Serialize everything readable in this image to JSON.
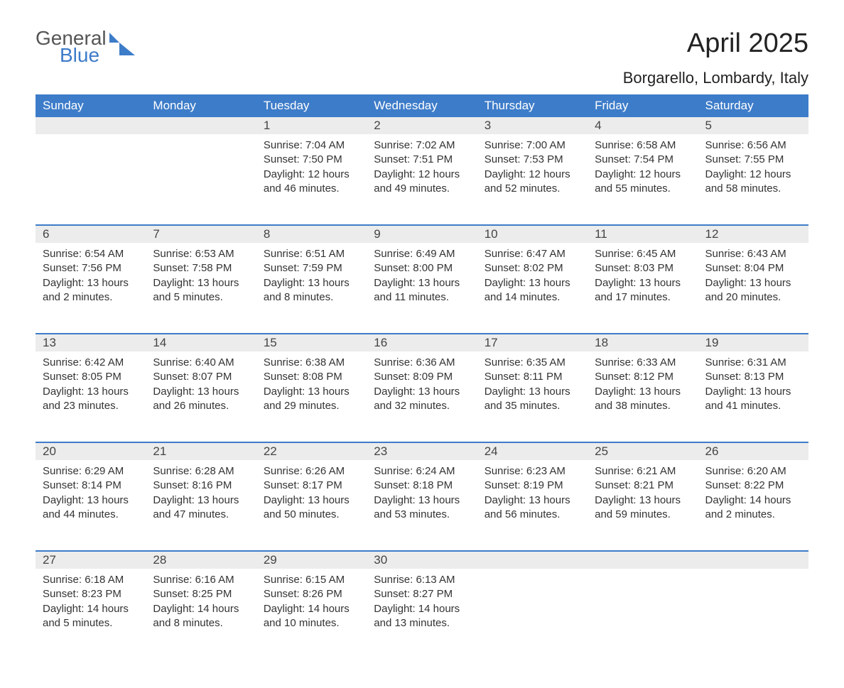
{
  "logo": {
    "word1": "General",
    "word2": "Blue"
  },
  "title": "April 2025",
  "location": "Borgarello, Lombardy, Italy",
  "colors": {
    "header_bg": "#3d7cc9",
    "header_text": "#ffffff",
    "daynum_bg": "#ececec",
    "week_divider": "#3d7cc9",
    "body_text": "#333333",
    "page_bg": "#ffffff"
  },
  "typography": {
    "title_fontsize": 38,
    "location_fontsize": 22,
    "header_fontsize": 17,
    "cell_fontsize": 15
  },
  "layout": {
    "columns": 7,
    "rows": 5
  },
  "weekdays": [
    "Sunday",
    "Monday",
    "Tuesday",
    "Wednesday",
    "Thursday",
    "Friday",
    "Saturday"
  ],
  "weeks": [
    [
      {
        "day": "",
        "sunrise": "",
        "sunset": "",
        "daylight": ""
      },
      {
        "day": "",
        "sunrise": "",
        "sunset": "",
        "daylight": ""
      },
      {
        "day": "1",
        "sunrise": "Sunrise: 7:04 AM",
        "sunset": "Sunset: 7:50 PM",
        "daylight": "Daylight: 12 hours and 46 minutes."
      },
      {
        "day": "2",
        "sunrise": "Sunrise: 7:02 AM",
        "sunset": "Sunset: 7:51 PM",
        "daylight": "Daylight: 12 hours and 49 minutes."
      },
      {
        "day": "3",
        "sunrise": "Sunrise: 7:00 AM",
        "sunset": "Sunset: 7:53 PM",
        "daylight": "Daylight: 12 hours and 52 minutes."
      },
      {
        "day": "4",
        "sunrise": "Sunrise: 6:58 AM",
        "sunset": "Sunset: 7:54 PM",
        "daylight": "Daylight: 12 hours and 55 minutes."
      },
      {
        "day": "5",
        "sunrise": "Sunrise: 6:56 AM",
        "sunset": "Sunset: 7:55 PM",
        "daylight": "Daylight: 12 hours and 58 minutes."
      }
    ],
    [
      {
        "day": "6",
        "sunrise": "Sunrise: 6:54 AM",
        "sunset": "Sunset: 7:56 PM",
        "daylight": "Daylight: 13 hours and 2 minutes."
      },
      {
        "day": "7",
        "sunrise": "Sunrise: 6:53 AM",
        "sunset": "Sunset: 7:58 PM",
        "daylight": "Daylight: 13 hours and 5 minutes."
      },
      {
        "day": "8",
        "sunrise": "Sunrise: 6:51 AM",
        "sunset": "Sunset: 7:59 PM",
        "daylight": "Daylight: 13 hours and 8 minutes."
      },
      {
        "day": "9",
        "sunrise": "Sunrise: 6:49 AM",
        "sunset": "Sunset: 8:00 PM",
        "daylight": "Daylight: 13 hours and 11 minutes."
      },
      {
        "day": "10",
        "sunrise": "Sunrise: 6:47 AM",
        "sunset": "Sunset: 8:02 PM",
        "daylight": "Daylight: 13 hours and 14 minutes."
      },
      {
        "day": "11",
        "sunrise": "Sunrise: 6:45 AM",
        "sunset": "Sunset: 8:03 PM",
        "daylight": "Daylight: 13 hours and 17 minutes."
      },
      {
        "day": "12",
        "sunrise": "Sunrise: 6:43 AM",
        "sunset": "Sunset: 8:04 PM",
        "daylight": "Daylight: 13 hours and 20 minutes."
      }
    ],
    [
      {
        "day": "13",
        "sunrise": "Sunrise: 6:42 AM",
        "sunset": "Sunset: 8:05 PM",
        "daylight": "Daylight: 13 hours and 23 minutes."
      },
      {
        "day": "14",
        "sunrise": "Sunrise: 6:40 AM",
        "sunset": "Sunset: 8:07 PM",
        "daylight": "Daylight: 13 hours and 26 minutes."
      },
      {
        "day": "15",
        "sunrise": "Sunrise: 6:38 AM",
        "sunset": "Sunset: 8:08 PM",
        "daylight": "Daylight: 13 hours and 29 minutes."
      },
      {
        "day": "16",
        "sunrise": "Sunrise: 6:36 AM",
        "sunset": "Sunset: 8:09 PM",
        "daylight": "Daylight: 13 hours and 32 minutes."
      },
      {
        "day": "17",
        "sunrise": "Sunrise: 6:35 AM",
        "sunset": "Sunset: 8:11 PM",
        "daylight": "Daylight: 13 hours and 35 minutes."
      },
      {
        "day": "18",
        "sunrise": "Sunrise: 6:33 AM",
        "sunset": "Sunset: 8:12 PM",
        "daylight": "Daylight: 13 hours and 38 minutes."
      },
      {
        "day": "19",
        "sunrise": "Sunrise: 6:31 AM",
        "sunset": "Sunset: 8:13 PM",
        "daylight": "Daylight: 13 hours and 41 minutes."
      }
    ],
    [
      {
        "day": "20",
        "sunrise": "Sunrise: 6:29 AM",
        "sunset": "Sunset: 8:14 PM",
        "daylight": "Daylight: 13 hours and 44 minutes."
      },
      {
        "day": "21",
        "sunrise": "Sunrise: 6:28 AM",
        "sunset": "Sunset: 8:16 PM",
        "daylight": "Daylight: 13 hours and 47 minutes."
      },
      {
        "day": "22",
        "sunrise": "Sunrise: 6:26 AM",
        "sunset": "Sunset: 8:17 PM",
        "daylight": "Daylight: 13 hours and 50 minutes."
      },
      {
        "day": "23",
        "sunrise": "Sunrise: 6:24 AM",
        "sunset": "Sunset: 8:18 PM",
        "daylight": "Daylight: 13 hours and 53 minutes."
      },
      {
        "day": "24",
        "sunrise": "Sunrise: 6:23 AM",
        "sunset": "Sunset: 8:19 PM",
        "daylight": "Daylight: 13 hours and 56 minutes."
      },
      {
        "day": "25",
        "sunrise": "Sunrise: 6:21 AM",
        "sunset": "Sunset: 8:21 PM",
        "daylight": "Daylight: 13 hours and 59 minutes."
      },
      {
        "day": "26",
        "sunrise": "Sunrise: 6:20 AM",
        "sunset": "Sunset: 8:22 PM",
        "daylight": "Daylight: 14 hours and 2 minutes."
      }
    ],
    [
      {
        "day": "27",
        "sunrise": "Sunrise: 6:18 AM",
        "sunset": "Sunset: 8:23 PM",
        "daylight": "Daylight: 14 hours and 5 minutes."
      },
      {
        "day": "28",
        "sunrise": "Sunrise: 6:16 AM",
        "sunset": "Sunset: 8:25 PM",
        "daylight": "Daylight: 14 hours and 8 minutes."
      },
      {
        "day": "29",
        "sunrise": "Sunrise: 6:15 AM",
        "sunset": "Sunset: 8:26 PM",
        "daylight": "Daylight: 14 hours and 10 minutes."
      },
      {
        "day": "30",
        "sunrise": "Sunrise: 6:13 AM",
        "sunset": "Sunset: 8:27 PM",
        "daylight": "Daylight: 14 hours and 13 minutes."
      },
      {
        "day": "",
        "sunrise": "",
        "sunset": "",
        "daylight": ""
      },
      {
        "day": "",
        "sunrise": "",
        "sunset": "",
        "daylight": ""
      },
      {
        "day": "",
        "sunrise": "",
        "sunset": "",
        "daylight": ""
      }
    ]
  ]
}
